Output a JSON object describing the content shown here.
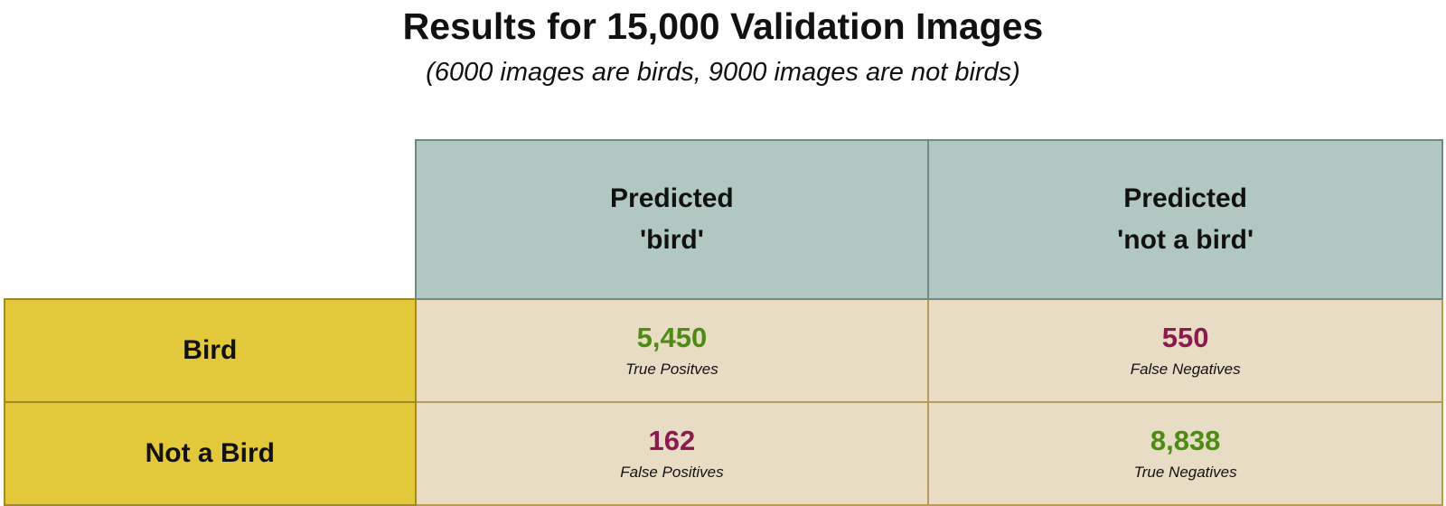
{
  "title": "Results for 15,000 Validation Images",
  "subtitle": "(6000 images are birds, 9000 images are not birds)",
  "columns": [
    {
      "line1": "Predicted",
      "line2": "'bird'"
    },
    {
      "line1": "Predicted",
      "line2": "'not a bird'"
    }
  ],
  "rows": [
    {
      "label": "Bird",
      "cells": [
        {
          "value": "5,450",
          "label": "True Positves",
          "outcome": "correct"
        },
        {
          "value": "550",
          "label": "False Negatives",
          "outcome": "incorrect"
        }
      ]
    },
    {
      "label": "Not a Bird",
      "cells": [
        {
          "value": "162",
          "label": "False Positives",
          "outcome": "incorrect"
        },
        {
          "value": "8,838",
          "label": "True Negatives",
          "outcome": "correct"
        }
      ]
    }
  ],
  "colors": {
    "correct": "#4c8c12",
    "incorrect": "#8c1a4f",
    "column_header_fill": "#b1c7c1",
    "row_header_fill": "#e2c83a",
    "cell_fill": "#e8dcc5"
  }
}
